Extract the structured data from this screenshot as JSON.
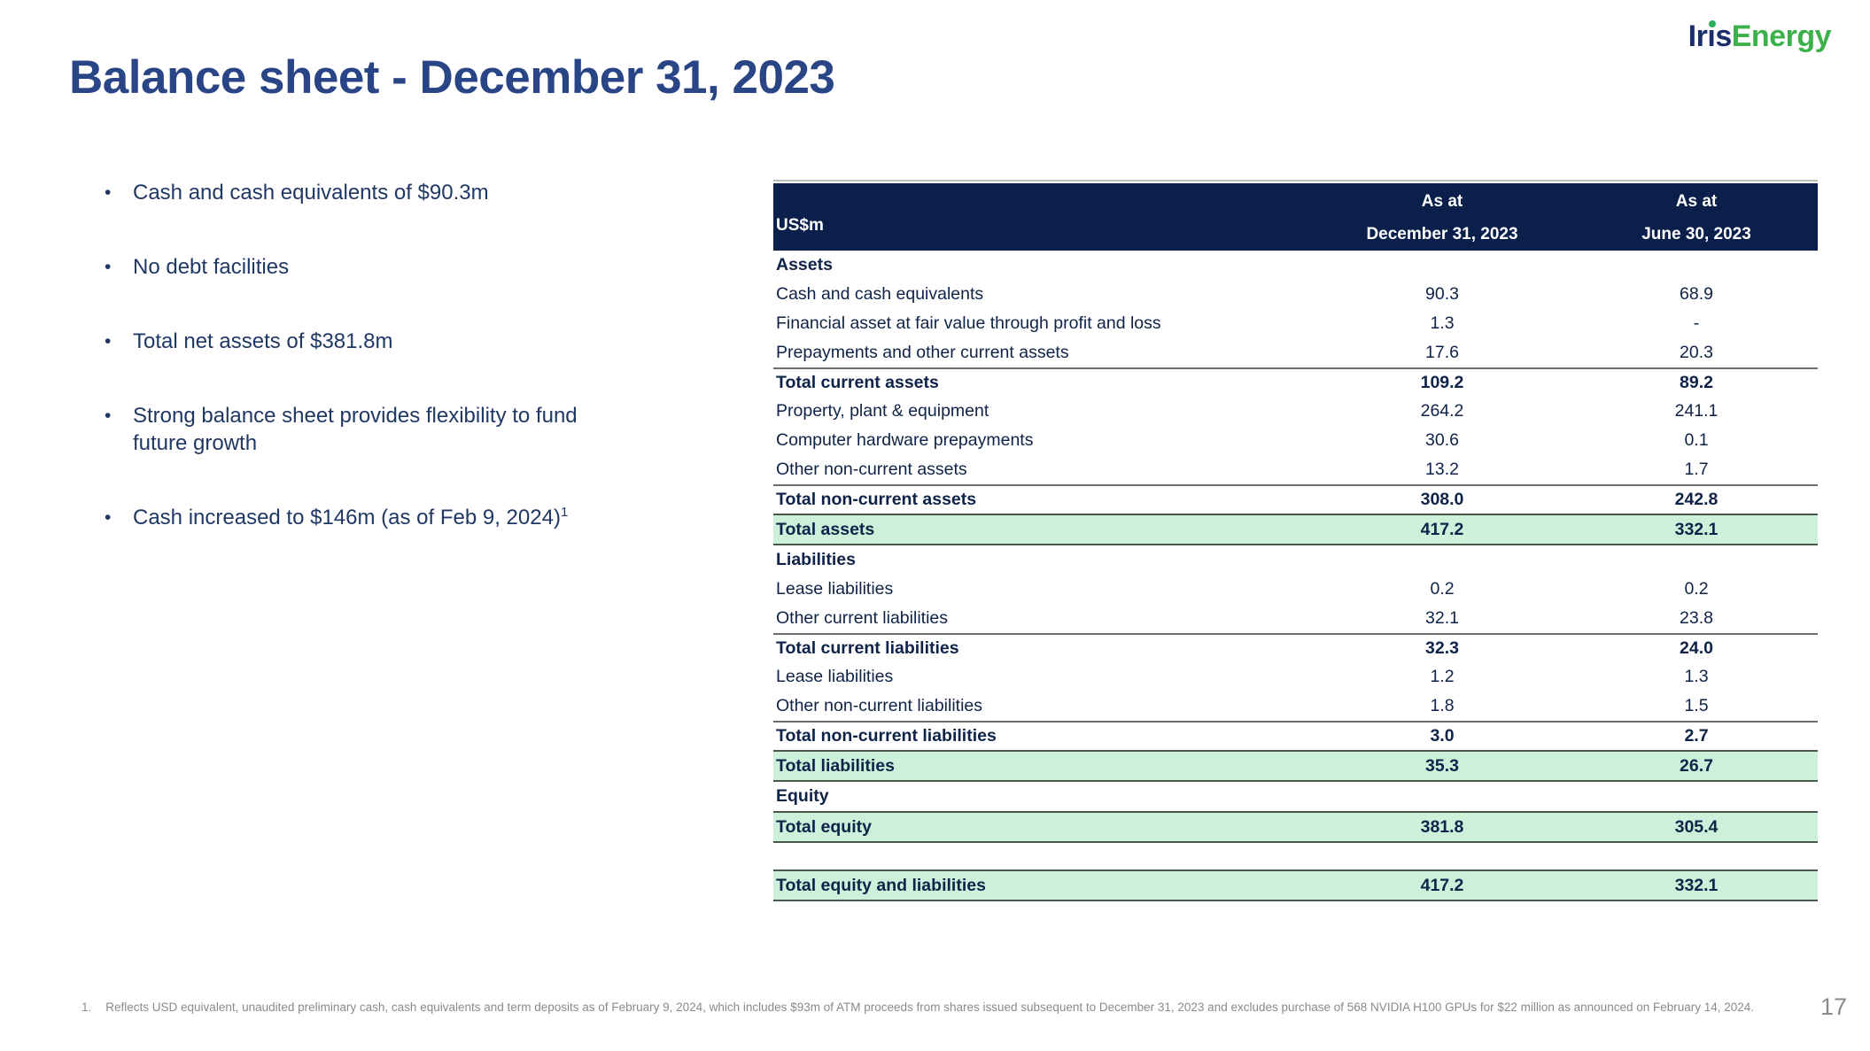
{
  "logo": {
    "word1": "Ir",
    "word1_dotless_i": "ı",
    "word1_end": "s",
    "word2": "Energy"
  },
  "title": "Balance sheet - December 31, 2023",
  "bullets": [
    {
      "text": "Cash and cash equivalents of $90.3m"
    },
    {
      "text": "No debt facilities"
    },
    {
      "text": "Total net assets of $381.8m"
    },
    {
      "text": "Strong balance sheet provides flexibility to fund future growth"
    },
    {
      "text": "Cash increased to $146m (as of Feb 9, 2024)",
      "superscript": "1"
    }
  ],
  "table": {
    "unit_label": "US$m",
    "columns": [
      {
        "line1": "As at",
        "line2": "December 31, 2023"
      },
      {
        "line1": "As at",
        "line2": "June 30, 2023"
      }
    ],
    "rows": [
      {
        "type": "section",
        "label": "Assets",
        "v1": "",
        "v2": ""
      },
      {
        "type": "normal",
        "label": "Cash and cash equivalents",
        "v1": "90.3",
        "v2": "68.9"
      },
      {
        "type": "normal",
        "label": "Financial asset at fair value through profit and loss",
        "v1": "1.3",
        "v2": "-"
      },
      {
        "type": "normal",
        "label": "Prepayments and other current assets",
        "v1": "17.6",
        "v2": "20.3"
      },
      {
        "type": "total",
        "label": "Total current assets",
        "v1": "109.2",
        "v2": "89.2"
      },
      {
        "type": "normal",
        "label": "Property, plant & equipment",
        "v1": "264.2",
        "v2": "241.1"
      },
      {
        "type": "normal",
        "label": "Computer hardware prepayments",
        "v1": "30.6",
        "v2": "0.1"
      },
      {
        "type": "normal",
        "label": "Other non-current assets",
        "v1": "13.2",
        "v2": "1.7"
      },
      {
        "type": "total",
        "label": "Total non-current assets",
        "v1": "308.0",
        "v2": "242.8"
      },
      {
        "type": "highlight",
        "label": "Total assets",
        "v1": "417.2",
        "v2": "332.1"
      },
      {
        "type": "section",
        "label": "Liabilities",
        "v1": "",
        "v2": ""
      },
      {
        "type": "normal",
        "label": "Lease liabilities",
        "v1": "0.2",
        "v2": "0.2"
      },
      {
        "type": "normal",
        "label": "Other current liabilities",
        "v1": "32.1",
        "v2": "23.8"
      },
      {
        "type": "total",
        "label": "Total current liabilities",
        "v1": "32.3",
        "v2": "24.0"
      },
      {
        "type": "normal",
        "label": "Lease liabilities",
        "v1": "1.2",
        "v2": "1.3"
      },
      {
        "type": "normal",
        "label": "Other non-current liabilities",
        "v1": "1.8",
        "v2": "1.5"
      },
      {
        "type": "total",
        "label": "Total non-current liabilities",
        "v1": "3.0",
        "v2": "2.7"
      },
      {
        "type": "highlight",
        "label": "Total liabilities",
        "v1": "35.3",
        "v2": "26.7"
      },
      {
        "type": "section",
        "label": "Equity",
        "v1": "",
        "v2": ""
      },
      {
        "type": "highlight",
        "label": "Total equity",
        "v1": "381.8",
        "v2": "305.4"
      },
      {
        "type": "spacer",
        "label": "",
        "v1": "",
        "v2": ""
      },
      {
        "type": "highlight",
        "label": "Total equity and liabilities",
        "v1": "417.2",
        "v2": "332.1"
      }
    ]
  },
  "footnote": {
    "marker": "1.",
    "text": "Reflects USD equivalent, unaudited preliminary cash, cash equivalents and term deposits as of February 9, 2024, which includes $93m of ATM proceeds from shares issued subsequent to December 31, 2023 and excludes purchase of 568 NVIDIA H100 GPUs for $22 million as announced on February 14, 2024."
  },
  "page_number": "17",
  "colors": {
    "brand_navy": "#1b2e6b",
    "brand_green": "#3cb04a",
    "title_navy": "#2a4586",
    "table_header_navy": "#0b1f4b",
    "table_text_navy": "#0e2347",
    "highlight_green": "#cdf0da",
    "footnote_gray": "#8a8a8a"
  }
}
